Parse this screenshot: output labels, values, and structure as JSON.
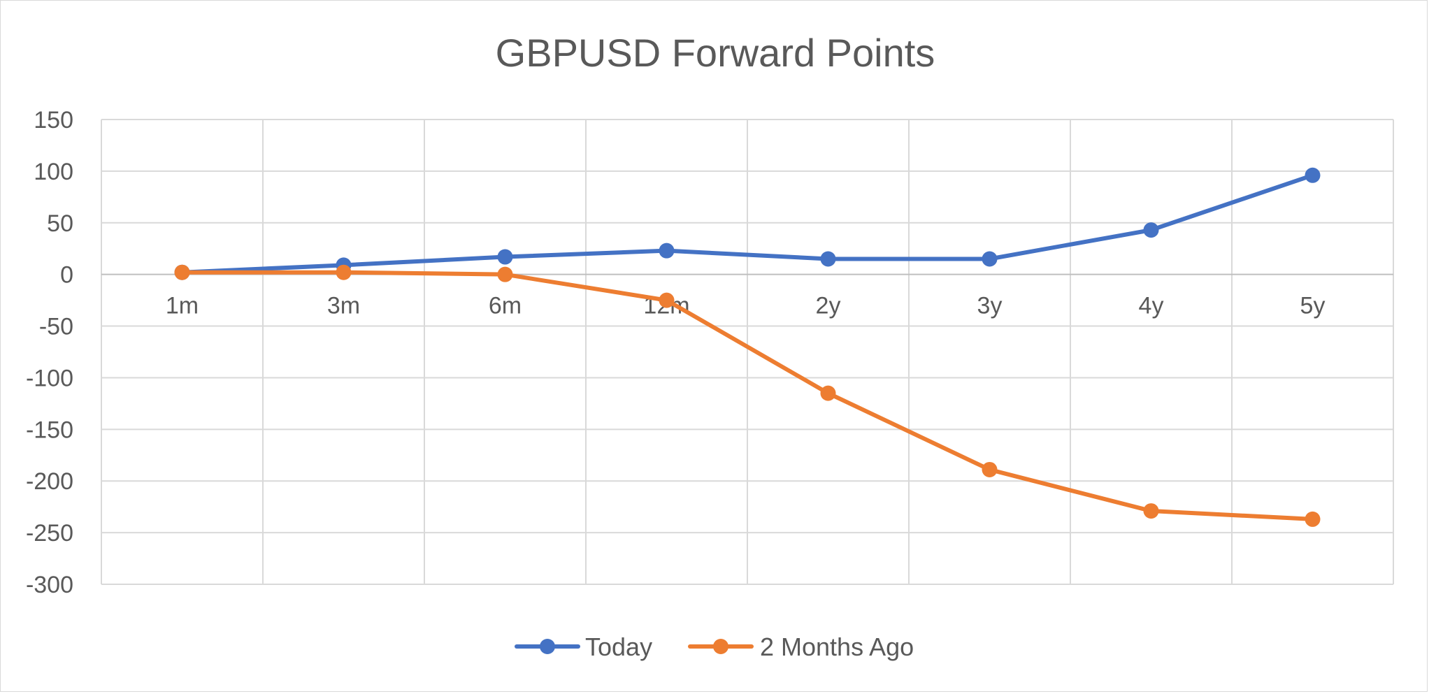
{
  "chart_data": {
    "type": "line",
    "title": "GBPUSD Forward Points",
    "categories": [
      "1m",
      "3m",
      "6m",
      "12m",
      "2y",
      "3y",
      "4y",
      "5y"
    ],
    "series": [
      {
        "name": "Today",
        "color": "#4472C4",
        "values": [
          2,
          9,
          17,
          23,
          15,
          15,
          43,
          96
        ]
      },
      {
        "name": "2 Months Ago",
        "color": "#ED7D31",
        "values": [
          2,
          2,
          0,
          -25,
          -115,
          -189,
          -229,
          -237
        ]
      }
    ],
    "ylim": [
      -300,
      150
    ],
    "yticks": [
      "150",
      "100",
      "50",
      "0",
      "-50",
      "-100",
      "-150",
      "-200",
      "-250",
      "-300"
    ],
    "grid": true,
    "legend_position": "bottom"
  }
}
